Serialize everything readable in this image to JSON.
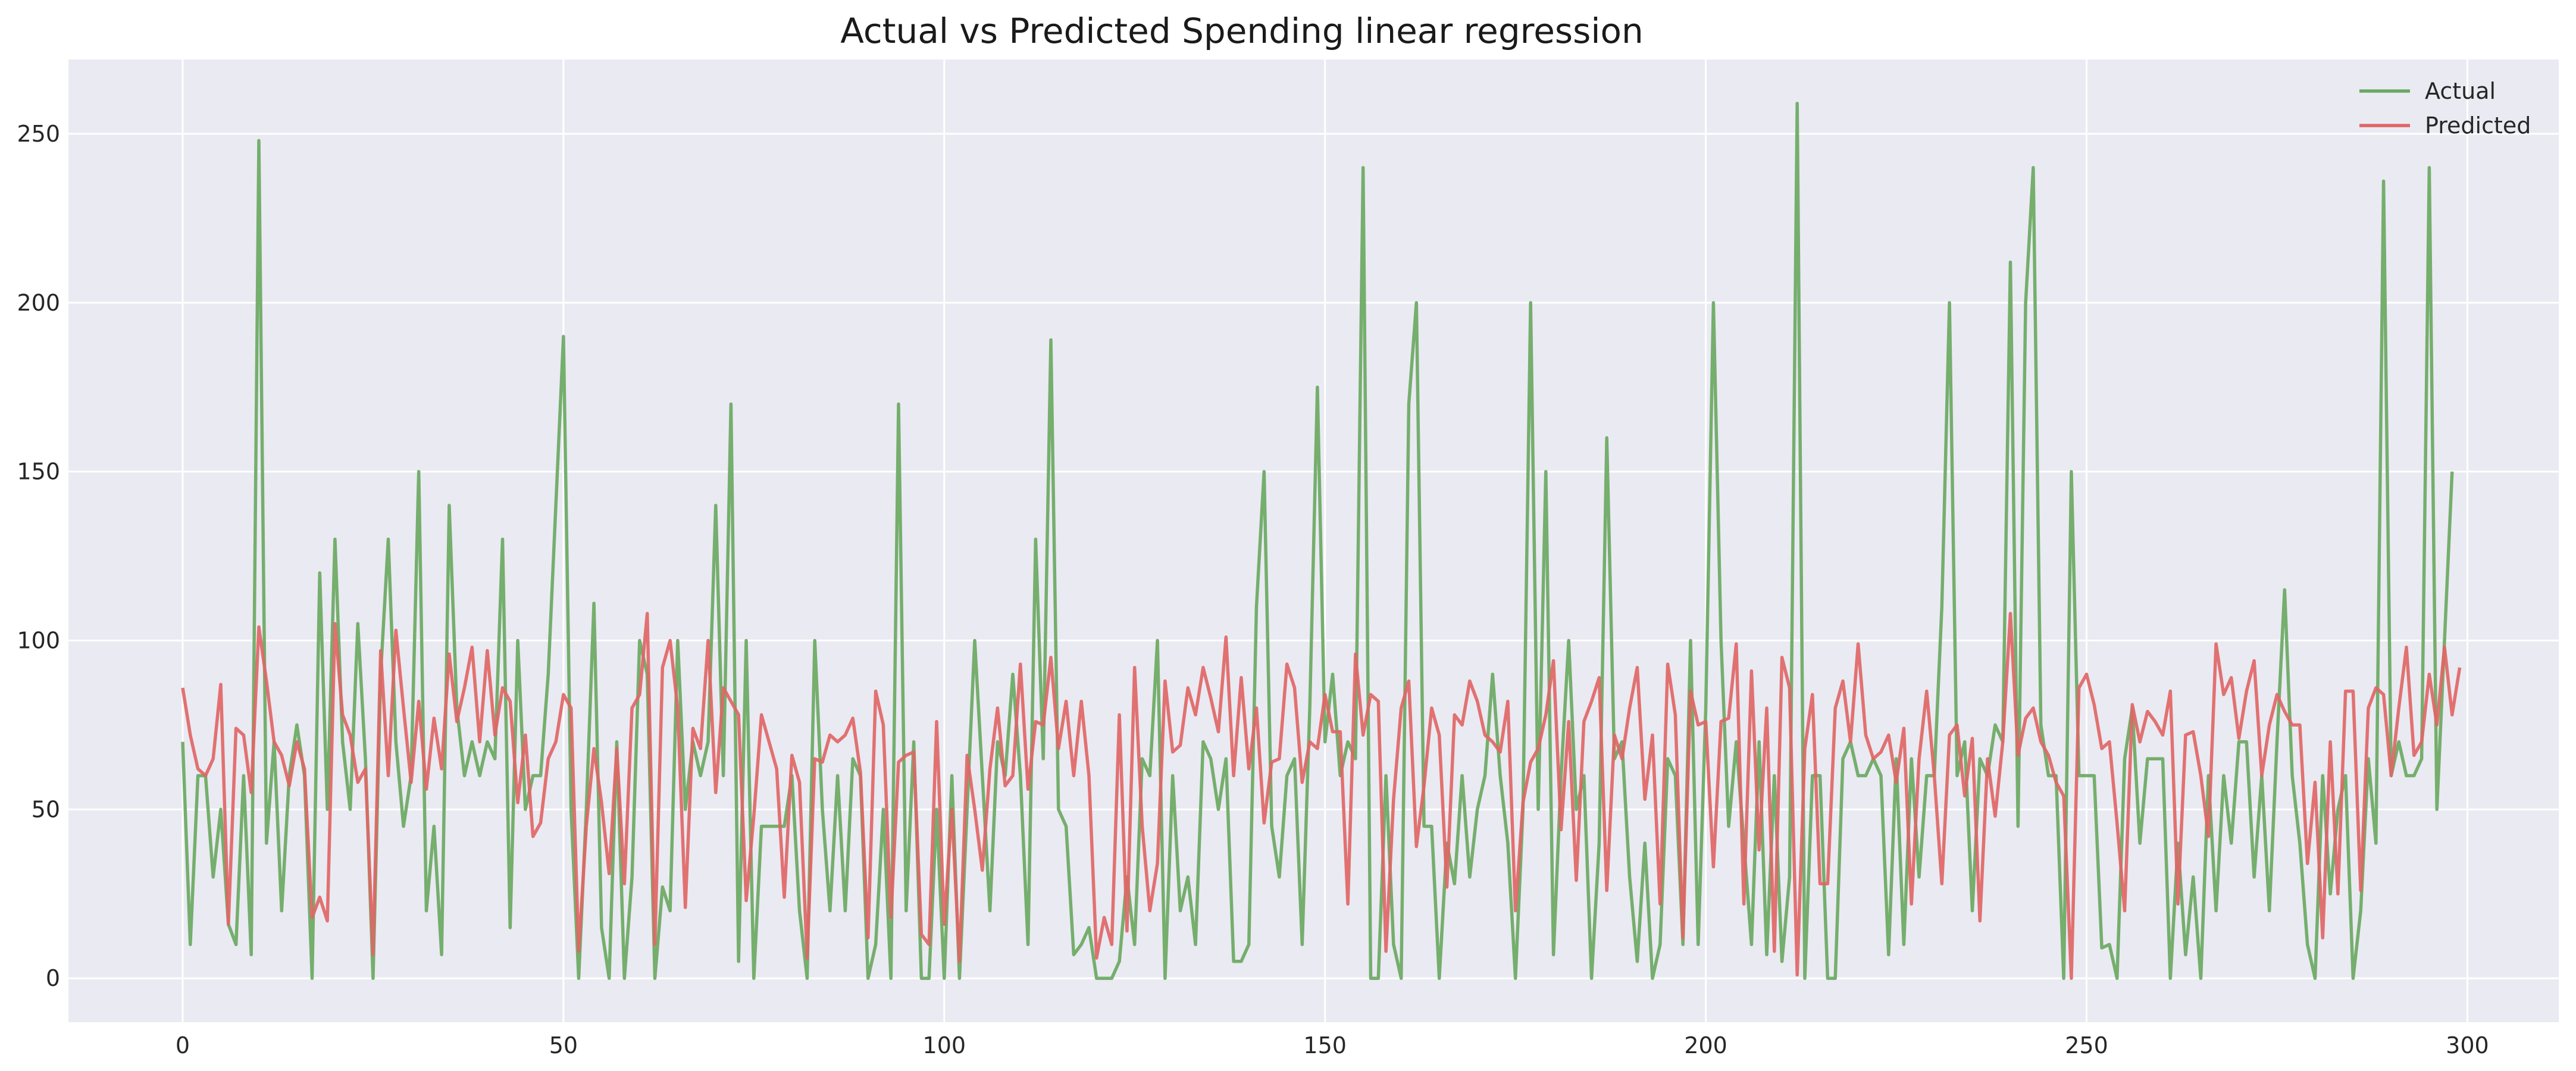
{
  "chart_data": {
    "type": "line",
    "title": "Actual vs Predicted Spending linear regression",
    "xlabel": "",
    "ylabel": "",
    "xlim": [
      -15,
      312
    ],
    "ylim": [
      -13,
      272
    ],
    "x_ticks": [
      0,
      50,
      100,
      150,
      200,
      250,
      300
    ],
    "y_ticks": [
      0,
      50,
      100,
      150,
      200,
      250
    ],
    "grid": true,
    "legend_position": "top-right",
    "colors": {
      "background": "#eaeaf2",
      "grid": "#ffffff",
      "actual": "#6aa862",
      "predicted": "#e06666"
    },
    "series": [
      {
        "name": "Actual",
        "color": "#6aa862",
        "values": [
          70,
          10,
          60,
          60,
          30,
          50,
          16,
          10,
          60,
          7,
          248,
          40,
          70,
          20,
          60,
          75,
          60,
          0,
          120,
          50,
          130,
          70,
          50,
          105,
          65,
          0,
          90,
          130,
          70,
          45,
          60,
          150,
          20,
          45,
          7,
          140,
          80,
          60,
          70,
          60,
          70,
          65,
          130,
          15,
          100,
          50,
          60,
          60,
          90,
          140,
          190,
          50,
          0,
          50,
          111,
          15,
          0,
          70,
          0,
          30,
          100,
          90,
          0,
          27,
          20,
          100,
          50,
          70,
          60,
          70,
          140,
          60,
          170,
          5,
          100,
          0,
          45,
          45,
          45,
          45,
          60,
          20,
          0,
          100,
          50,
          20,
          60,
          20,
          65,
          60,
          0,
          10,
          50,
          0,
          170,
          20,
          70,
          0,
          0,
          50,
          0,
          60,
          0,
          50,
          100,
          60,
          20,
          70,
          60,
          90,
          60,
          10,
          130,
          65,
          189,
          50,
          45,
          7,
          10,
          15,
          0,
          0,
          0,
          5,
          30,
          10,
          65,
          60,
          100,
          0,
          60,
          20,
          30,
          10,
          70,
          65,
          50,
          65,
          5,
          5,
          10,
          110,
          150,
          45,
          30,
          60,
          65,
          10,
          80,
          175,
          70,
          90,
          60,
          70,
          65,
          240,
          0,
          0,
          60,
          10,
          0,
          170,
          200,
          45,
          45,
          0,
          40,
          28,
          60,
          30,
          50,
          60,
          90,
          60,
          40,
          0,
          50,
          200,
          50,
          150,
          7,
          60,
          100,
          50,
          60,
          0,
          40,
          160,
          65,
          70,
          30,
          5,
          40,
          0,
          10,
          65,
          60,
          10,
          100,
          10,
          80,
          200,
          100,
          45,
          70,
          40,
          10,
          70,
          7,
          60,
          5,
          30,
          259,
          0,
          60,
          60,
          0,
          0,
          65,
          70,
          60,
          60,
          65,
          60,
          7,
          65,
          10,
          65,
          30,
          60,
          60,
          110,
          200,
          60,
          70,
          20,
          65,
          60,
          75,
          70,
          212,
          45,
          200,
          240,
          75,
          60,
          60,
          0,
          150,
          60,
          60,
          60,
          9,
          10,
          0,
          65,
          80,
          40,
          65,
          65,
          65,
          0,
          40,
          7,
          30,
          0,
          60,
          20,
          60,
          40,
          70,
          70,
          30,
          60,
          20,
          70,
          115,
          60,
          40,
          10,
          0,
          60,
          25,
          50,
          60,
          0,
          20,
          65,
          40,
          236,
          60,
          70,
          60,
          60,
          65,
          240,
          50,
          100,
          150
        ]
      },
      {
        "name": "Predicted",
        "color": "#e06666",
        "values": [
          86,
          72,
          62,
          60,
          65,
          87,
          16,
          74,
          72,
          55,
          104,
          88,
          70,
          66,
          57,
          70,
          62,
          18,
          24,
          17,
          105,
          78,
          72,
          58,
          62,
          7,
          97,
          60,
          103,
          80,
          58,
          82,
          56,
          77,
          62,
          96,
          76,
          86,
          98,
          70,
          97,
          72,
          86,
          82,
          52,
          72,
          42,
          46,
          65,
          70,
          84,
          80,
          8,
          45,
          68,
          52,
          31,
          68,
          28,
          80,
          84,
          108,
          10,
          92,
          100,
          80,
          21,
          74,
          68,
          100,
          55,
          86,
          82,
          78,
          23,
          48,
          78,
          70,
          62,
          24,
          66,
          58,
          6,
          65,
          64,
          72,
          70,
          72,
          77,
          61,
          12,
          85,
          75,
          18,
          64,
          66,
          67,
          13,
          10,
          76,
          16,
          50,
          5,
          66,
          50,
          32,
          62,
          80,
          57,
          60,
          93,
          56,
          76,
          75,
          95,
          68,
          82,
          60,
          82,
          60,
          6,
          18,
          10,
          78,
          14,
          92,
          45,
          20,
          34,
          88,
          67,
          69,
          86,
          78,
          92,
          83,
          73,
          101,
          60,
          89,
          62,
          80,
          46,
          64,
          65,
          93,
          86,
          58,
          70,
          68,
          84,
          73,
          73,
          22,
          96,
          72,
          84,
          82,
          8,
          53,
          80,
          88,
          39,
          57,
          80,
          72,
          27,
          78,
          75,
          88,
          82,
          72,
          70,
          67,
          82,
          20,
          52,
          64,
          68,
          78,
          94,
          44,
          76,
          29,
          76,
          82,
          89,
          26,
          72,
          65,
          80,
          92,
          53,
          72,
          22,
          93,
          78,
          12,
          85,
          75,
          76,
          33,
          76,
          77,
          99,
          22,
          91,
          38,
          80,
          8,
          95,
          86,
          1,
          68,
          84,
          28,
          28,
          80,
          88,
          70,
          99,
          72,
          65,
          67,
          72,
          58,
          74,
          22,
          65,
          85,
          60,
          28,
          72,
          75,
          54,
          71,
          17,
          65,
          48,
          70,
          108,
          66,
          77,
          80,
          70,
          66,
          58,
          54,
          0,
          86,
          90,
          81,
          68,
          70,
          46,
          20,
          81,
          70,
          79,
          76,
          72,
          85,
          22,
          72,
          73,
          60,
          42,
          99,
          84,
          89,
          71,
          85,
          94,
          60,
          75,
          84,
          79,
          75,
          75,
          34,
          58,
          12,
          70,
          25,
          85,
          85,
          26,
          80,
          86,
          84,
          60,
          80,
          98,
          66,
          70,
          90,
          75,
          98,
          78,
          92
        ]
      }
    ]
  }
}
